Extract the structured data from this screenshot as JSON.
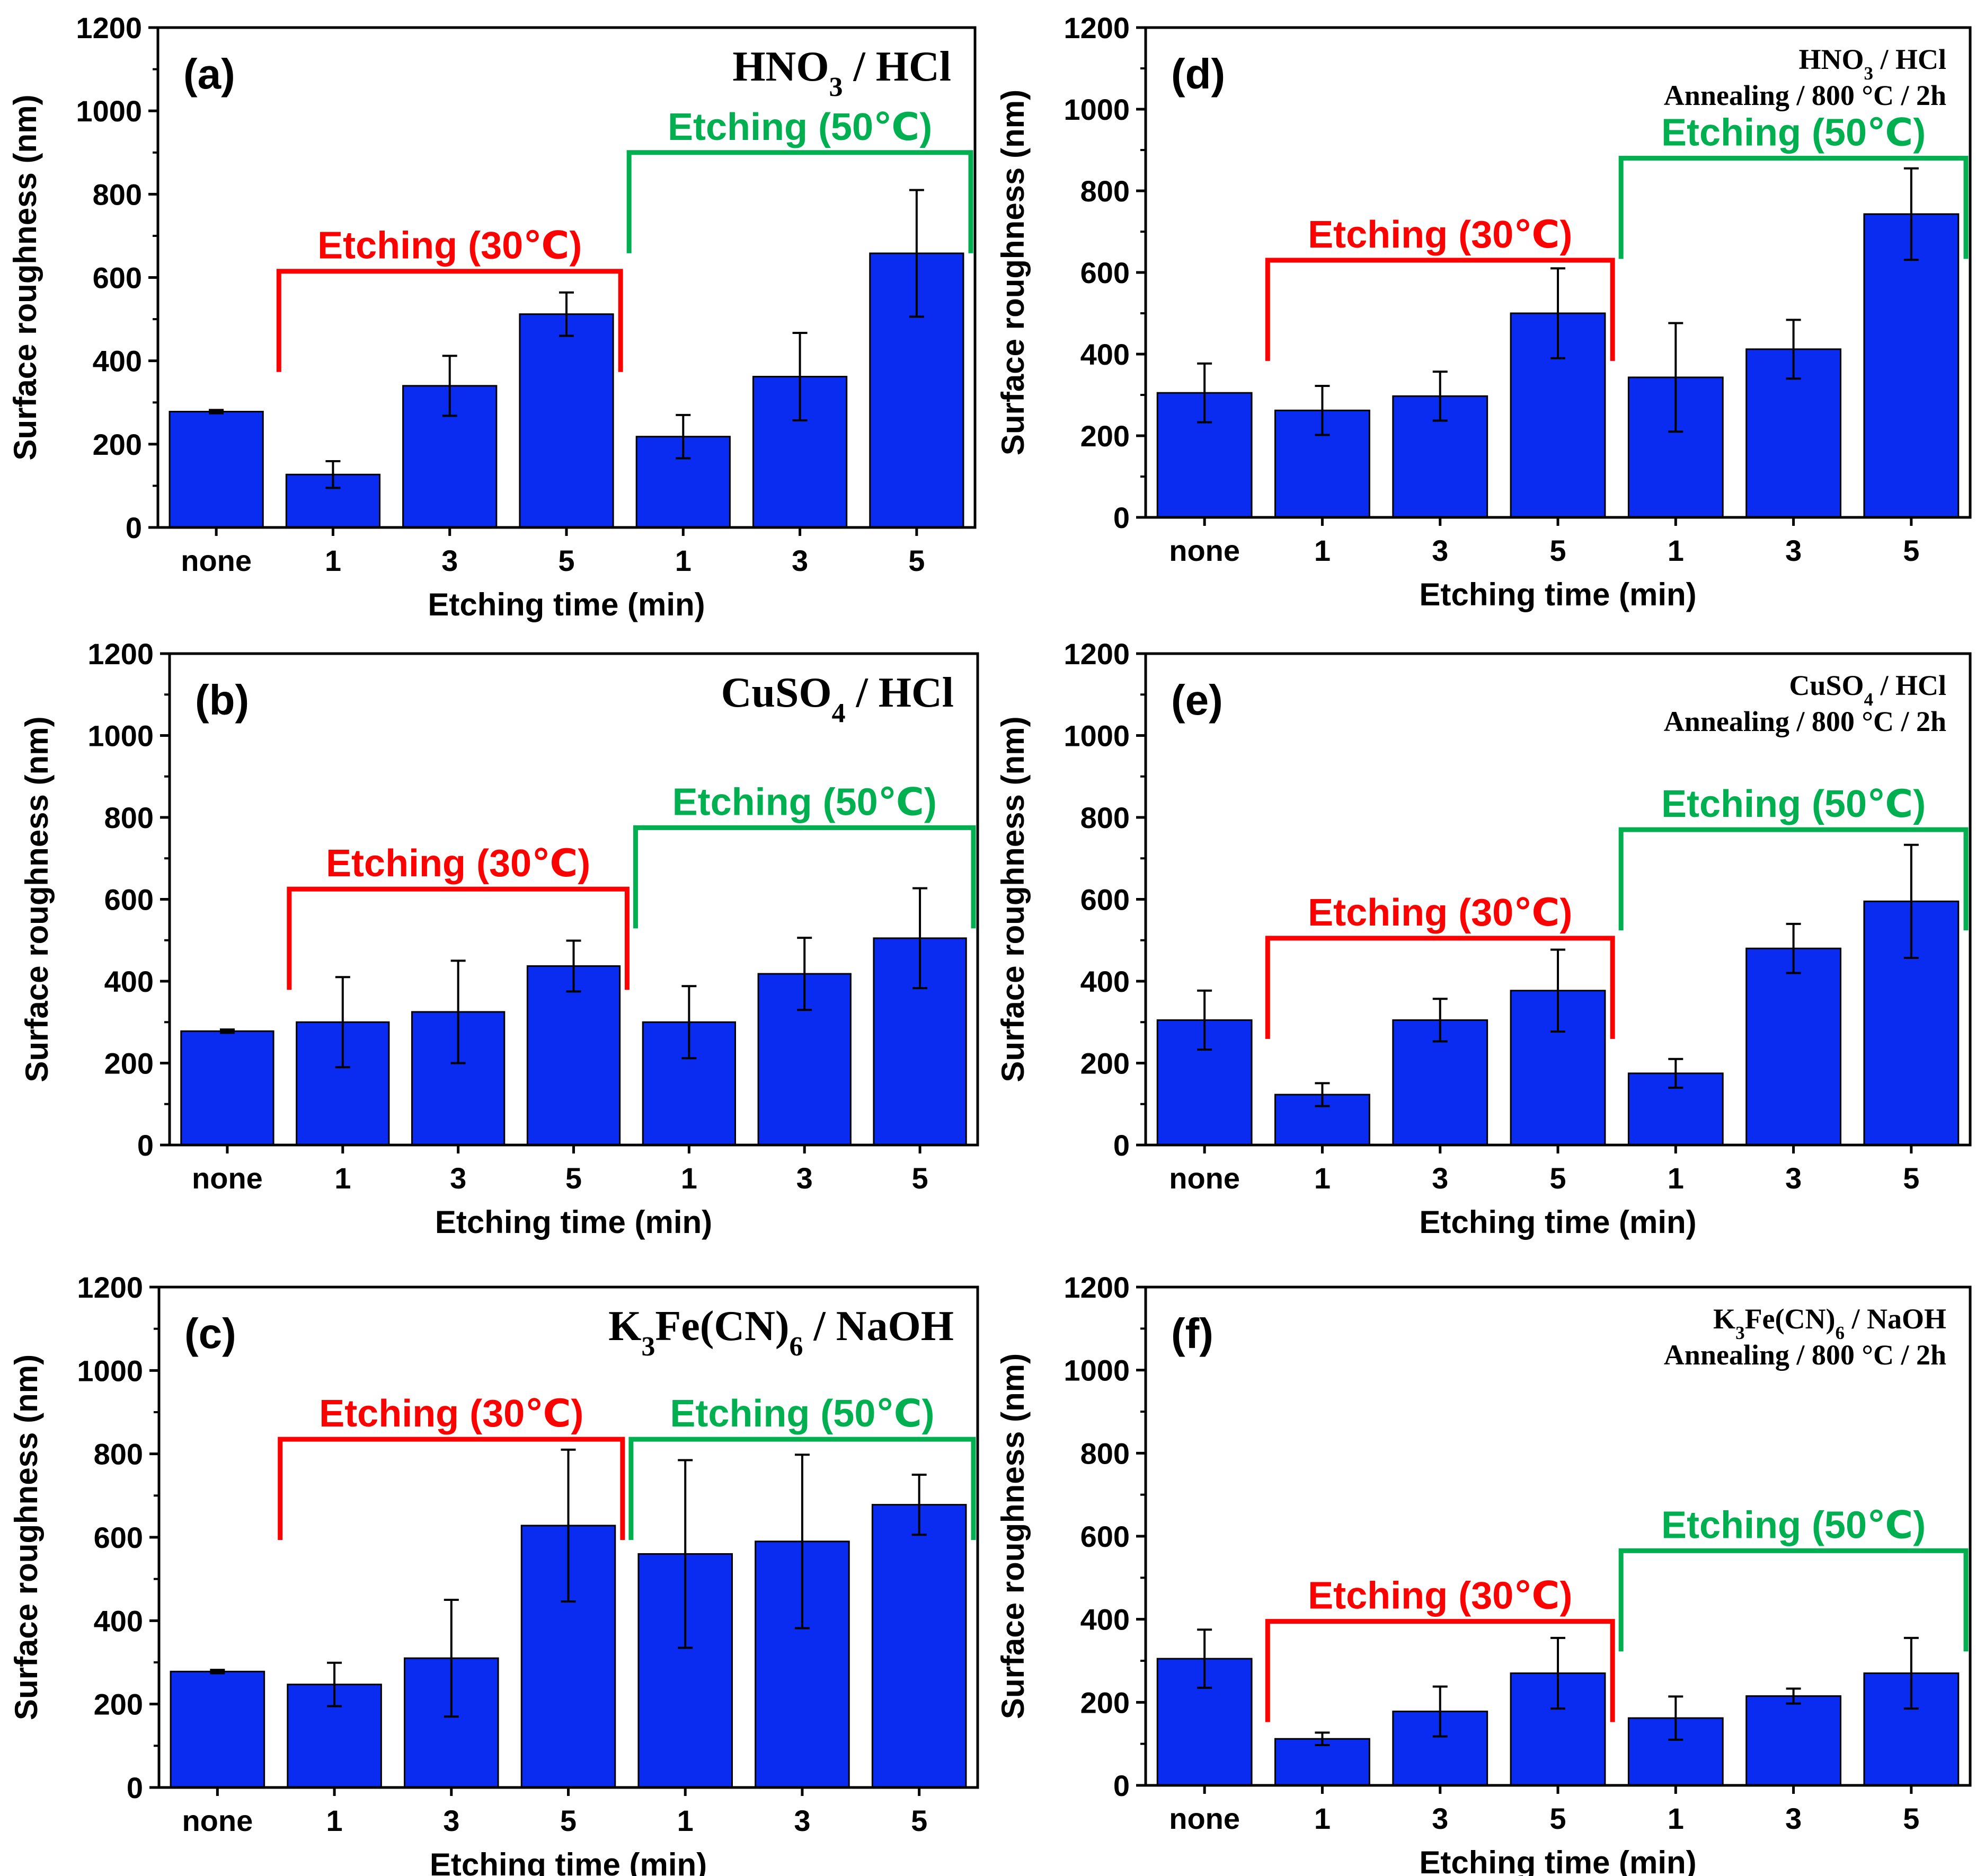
{
  "colors": {
    "bar": "#0a2cf0",
    "axis": "#000000",
    "bracket30": "#ff0000",
    "bracket50": "#00b050"
  },
  "shared": {
    "ylabel": "Surface roughness (nm)",
    "xlabel": "Etching time (min)",
    "bracket30_label": "Etching (30℃)",
    "bracket50_label": "Etching (50℃)",
    "yticks": [
      "0",
      "200",
      "400",
      "600",
      "800",
      "1000",
      "1200"
    ]
  },
  "chart_data": [
    {
      "type": "bar",
      "panel": "(a)",
      "title_parts": [
        {
          "t": "HNO"
        },
        {
          "t": "3",
          "sub": true
        },
        {
          "t": " / HCl"
        }
      ],
      "title_line2": "",
      "xlabel": "Etching time (min)",
      "ylabel": "Surface roughness (nm)",
      "ylim": [
        0,
        1200
      ],
      "categories": [
        "none",
        "1",
        "3",
        "5",
        "1",
        "3",
        "5"
      ],
      "values": [
        278,
        127,
        340,
        512,
        218,
        362,
        658
      ],
      "errors": [
        4,
        32,
        72,
        52,
        52,
        105,
        152
      ],
      "bracket30": {
        "start_index": 1,
        "end_index": 3,
        "level": 615
      },
      "bracket50": {
        "start_index": 4,
        "end_index": 6,
        "level": 900
      }
    },
    {
      "type": "bar",
      "panel": "(b)",
      "title_parts": [
        {
          "t": "CuSO"
        },
        {
          "t": "4",
          "sub": true
        },
        {
          "t": " / HCl"
        }
      ],
      "title_line2": "",
      "xlabel": "Etching time (min)",
      "ylabel": "Surface roughness (nm)",
      "ylim": [
        0,
        1200
      ],
      "categories": [
        "none",
        "1",
        "3",
        "5",
        "1",
        "3",
        "5"
      ],
      "values": [
        278,
        300,
        325,
        437,
        300,
        418,
        505
      ],
      "errors": [
        4,
        110,
        125,
        62,
        88,
        88,
        122
      ],
      "bracket30": {
        "start_index": 1,
        "end_index": 3,
        "level": 625
      },
      "bracket50": {
        "start_index": 4,
        "end_index": 6,
        "level": 775
      }
    },
    {
      "type": "bar",
      "panel": "(c)",
      "title_parts": [
        {
          "t": "K"
        },
        {
          "t": "3",
          "sub": true
        },
        {
          "t": "Fe(CN)"
        },
        {
          "t": "6",
          "sub": true
        },
        {
          "t": " / NaOH"
        }
      ],
      "title_line2": "",
      "xlabel": "Etching time (min)",
      "ylabel": "Surface roughness (nm)",
      "ylim": [
        0,
        1200
      ],
      "categories": [
        "none",
        "1",
        "3",
        "5",
        "1",
        "3",
        "5"
      ],
      "values": [
        278,
        247,
        310,
        628,
        560,
        590,
        678
      ],
      "errors": [
        4,
        52,
        140,
        182,
        225,
        208,
        72
      ],
      "bracket30": {
        "start_index": 1,
        "end_index": 3,
        "level": 835
      },
      "bracket50": {
        "start_index": 4,
        "end_index": 6,
        "level": 835
      }
    },
    {
      "type": "bar",
      "panel": "(d)",
      "title_parts": [
        {
          "t": "HNO"
        },
        {
          "t": "3",
          "sub": true
        },
        {
          "t": " / HCl"
        }
      ],
      "title_line2": "Annealing / 800 °C / 2h",
      "xlabel": "Etching time (min)",
      "ylabel": "Surface roughness (nm)",
      "ylim": [
        0,
        1200
      ],
      "categories": [
        "none",
        "1",
        "3",
        "5",
        "1",
        "3",
        "5"
      ],
      "values": [
        305,
        262,
        297,
        500,
        343,
        412,
        743
      ],
      "errors": [
        72,
        60,
        60,
        110,
        133,
        72,
        112
      ],
      "bracket30": {
        "start_index": 1,
        "end_index": 3,
        "level": 630
      },
      "bracket50": {
        "start_index": 4,
        "end_index": 6,
        "level": 880
      }
    },
    {
      "type": "bar",
      "panel": "(e)",
      "title_parts": [
        {
          "t": "CuSO"
        },
        {
          "t": "4",
          "sub": true
        },
        {
          "t": " / HCl"
        }
      ],
      "title_line2": "Annealing / 800 °C / 2h",
      "xlabel": "Etching time (min)",
      "ylabel": "Surface roughness (nm)",
      "ylim": [
        0,
        1200
      ],
      "categories": [
        "none",
        "1",
        "3",
        "5",
        "1",
        "3",
        "5"
      ],
      "values": [
        305,
        123,
        305,
        377,
        175,
        480,
        595
      ],
      "errors": [
        72,
        28,
        52,
        100,
        35,
        60,
        138
      ],
      "bracket30": {
        "start_index": 1,
        "end_index": 3,
        "level": 505
      },
      "bracket50": {
        "start_index": 4,
        "end_index": 6,
        "level": 770
      }
    },
    {
      "type": "bar",
      "panel": "(f)",
      "title_parts": [
        {
          "t": "K"
        },
        {
          "t": "3",
          "sub": true
        },
        {
          "t": "Fe(CN)"
        },
        {
          "t": "6",
          "sub": true
        },
        {
          "t": " / NaOH"
        }
      ],
      "title_line2": "Annealing / 800 °C / 2h",
      "xlabel": "Etching time (min)",
      "ylabel": "Surface roughness (nm)",
      "ylim": [
        0,
        1200
      ],
      "categories": [
        "none",
        "1",
        "3",
        "5",
        "1",
        "3",
        "5"
      ],
      "values": [
        305,
        112,
        178,
        270,
        162,
        215,
        270
      ],
      "errors": [
        70,
        15,
        60,
        85,
        52,
        18,
        85
      ],
      "bracket30": {
        "start_index": 1,
        "end_index": 3,
        "level": 395
      },
      "bracket50": {
        "start_index": 4,
        "end_index": 6,
        "level": 565
      }
    }
  ]
}
